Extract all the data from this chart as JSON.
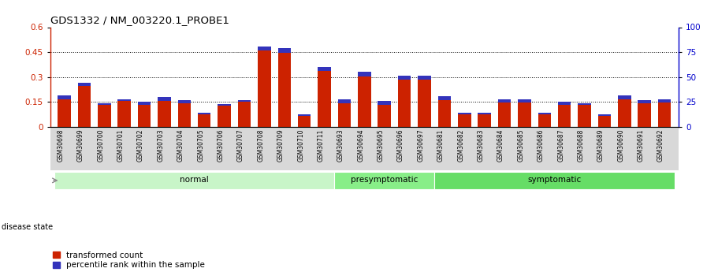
{
  "title": "GDS1332 / NM_003220.1_PROBE1",
  "samples": [
    "GSM30698",
    "GSM30699",
    "GSM30700",
    "GSM30701",
    "GSM30702",
    "GSM30703",
    "GSM30704",
    "GSM30705",
    "GSM30706",
    "GSM30707",
    "GSM30708",
    "GSM30709",
    "GSM30710",
    "GSM30711",
    "GSM30693",
    "GSM30694",
    "GSM30695",
    "GSM30696",
    "GSM30697",
    "GSM30681",
    "GSM30682",
    "GSM30683",
    "GSM30684",
    "GSM30685",
    "GSM30686",
    "GSM30687",
    "GSM30688",
    "GSM30689",
    "GSM30690",
    "GSM30691",
    "GSM30692"
  ],
  "red_values": [
    0.165,
    0.245,
    0.13,
    0.155,
    0.13,
    0.155,
    0.14,
    0.075,
    0.125,
    0.15,
    0.46,
    0.445,
    0.065,
    0.335,
    0.14,
    0.305,
    0.13,
    0.285,
    0.285,
    0.16,
    0.075,
    0.075,
    0.145,
    0.145,
    0.075,
    0.13,
    0.13,
    0.065,
    0.165,
    0.14,
    0.145
  ],
  "blue_values": [
    0.022,
    0.022,
    0.01,
    0.01,
    0.02,
    0.022,
    0.022,
    0.01,
    0.01,
    0.01,
    0.022,
    0.028,
    0.01,
    0.025,
    0.025,
    0.025,
    0.025,
    0.025,
    0.025,
    0.025,
    0.01,
    0.01,
    0.022,
    0.022,
    0.01,
    0.022,
    0.01,
    0.01,
    0.025,
    0.022,
    0.022
  ],
  "groups": [
    {
      "label": "normal",
      "start": 0,
      "end": 13,
      "color": "#c8f5c8"
    },
    {
      "label": "presymptomatic",
      "start": 14,
      "end": 18,
      "color": "#88ee88"
    },
    {
      "label": "symptomatic",
      "start": 19,
      "end": 30,
      "color": "#66dd66"
    }
  ],
  "ylim_left": [
    0.0,
    0.6
  ],
  "ylim_right": [
    0,
    100
  ],
  "yticks_left": [
    0,
    0.15,
    0.3,
    0.45,
    0.6
  ],
  "yticks_right": [
    0,
    25,
    50,
    75,
    100
  ],
  "grid_lines": [
    0.15,
    0.3,
    0.45
  ],
  "left_color": "#cc2200",
  "right_color": "#0000cc",
  "bar_color_red": "#cc2200",
  "bar_color_blue": "#3333bb",
  "bar_width": 0.65,
  "legend_items": [
    {
      "label": "transformed count",
      "color": "#cc2200"
    },
    {
      "label": "percentile rank within the sample",
      "color": "#3333bb"
    }
  ],
  "disease_state_label": "disease state"
}
